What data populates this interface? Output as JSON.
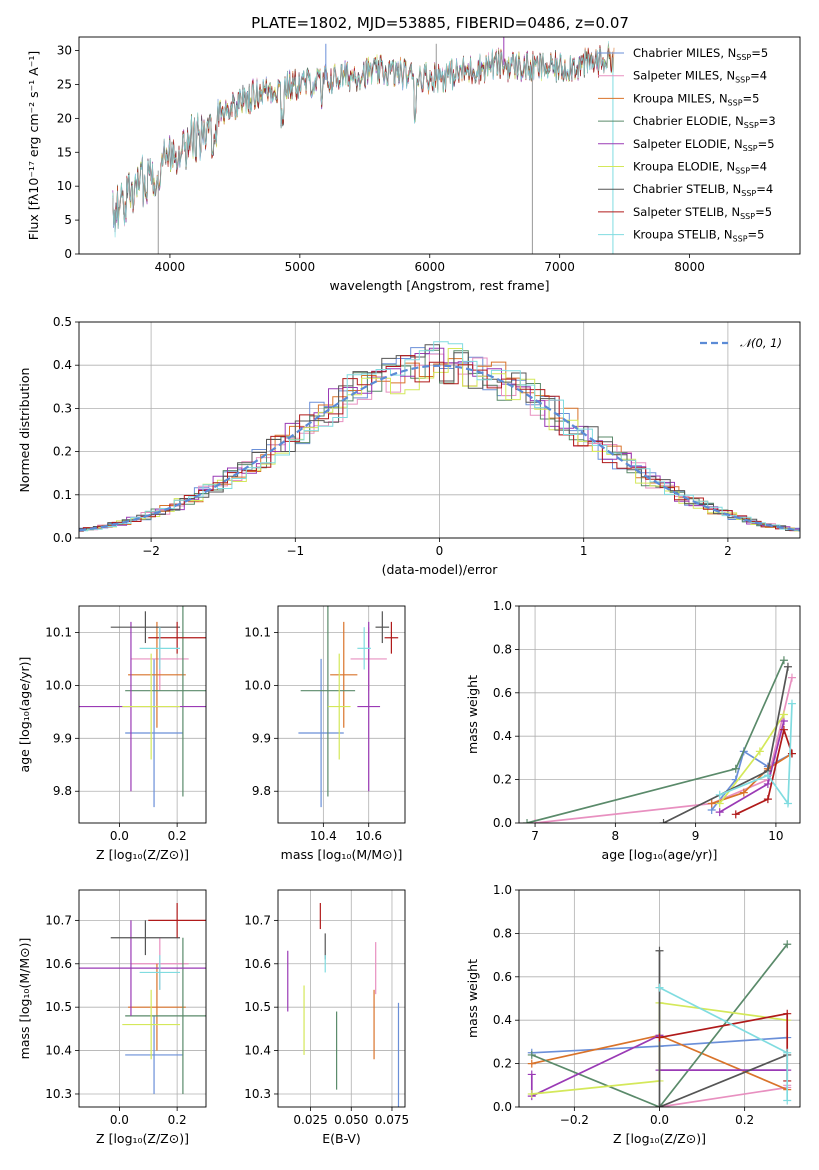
{
  "figure_title": "PLATE=1802, MJD=53885, FIBERID=0486, z=0.07",
  "colors": {
    "Chabrier MILES": "#6a8fd8",
    "Salpeter MILES": "#e890c0",
    "Kroupa MILES": "#d9732a",
    "Chabrier ELODIE": "#5a8a6a",
    "Salpeter ELODIE": "#9a3ab5",
    "Kroupa ELODIE": "#d4e85a",
    "Chabrier STELIB": "#555555",
    "Salpeter STELIB": "#b01a1a",
    "Kroupa STELIB": "#80dce0"
  },
  "chart_data": [
    {
      "id": "spectrum",
      "type": "line",
      "title": "",
      "xlabel": "wavelength [Angstrom, rest frame]",
      "ylabel": "Flux [fλ10⁻¹⁷ erg cm⁻² s⁻¹ A⁻¹]",
      "xlim": [
        3300,
        8850
      ],
      "ylim": [
        0,
        32
      ],
      "xticks": [
        4000,
        5000,
        6000,
        7000,
        8000
      ],
      "yticks": [
        0,
        5,
        10,
        15,
        20,
        25,
        30
      ],
      "grid": false,
      "legend_position": "top-right",
      "continuum": [
        [
          3560,
          6
        ],
        [
          3700,
          9
        ],
        [
          3800,
          11
        ],
        [
          3900,
          12
        ],
        [
          4000,
          15
        ],
        [
          4100,
          16
        ],
        [
          4200,
          17.5
        ],
        [
          4300,
          17
        ],
        [
          4400,
          21
        ],
        [
          4500,
          22
        ],
        [
          4700,
          24
        ],
        [
          5000,
          25
        ],
        [
          5300,
          26
        ],
        [
          5600,
          27
        ],
        [
          6000,
          26
        ],
        [
          6300,
          27
        ],
        [
          6500,
          28
        ],
        [
          6800,
          27.5
        ],
        [
          7000,
          27.5
        ],
        [
          7200,
          28
        ],
        [
          7400,
          29
        ]
      ],
      "spikes": [
        [
          5200,
          31
        ],
        [
          6050,
          31
        ],
        [
          6570,
          32
        ],
        [
          6790,
          0
        ],
        [
          7410,
          0
        ],
        [
          3910,
          0
        ]
      ],
      "series": [
        {
          "name": "Chabrier MILES, N_SSP=5",
          "legend": "Chabrier MILES, N",
          "legend_sub": "SSP",
          "legend_tail": "=5"
        },
        {
          "name": "Salpeter MILES, N_SSP=4",
          "legend": "Salpeter MILES, N",
          "legend_sub": "SSP",
          "legend_tail": "=4"
        },
        {
          "name": "Kroupa MILES, N_SSP=5",
          "legend": "Kroupa MILES, N",
          "legend_sub": "SSP",
          "legend_tail": "=5"
        },
        {
          "name": "Chabrier ELODIE, N_SSP=3",
          "legend": "Chabrier ELODIE, N",
          "legend_sub": "SSP",
          "legend_tail": "=3"
        },
        {
          "name": "Salpeter ELODIE, N_SSP=5",
          "legend": "Salpeter ELODIE, N",
          "legend_sub": "SSP",
          "legend_tail": "=5"
        },
        {
          "name": "Kroupa ELODIE, N_SSP=4",
          "legend": "Kroupa ELODIE, N",
          "legend_sub": "SSP",
          "legend_tail": "=4"
        },
        {
          "name": "Chabrier STELIB, N_SSP=4",
          "legend": "Chabrier STELIB, N",
          "legend_sub": "SSP",
          "legend_tail": "=4"
        },
        {
          "name": "Salpeter STELIB, N_SSP=5",
          "legend": "Salpeter STELIB, N",
          "legend_sub": "SSP",
          "legend_tail": "=5"
        },
        {
          "name": "Kroupa STELIB, N_SSP=5",
          "legend": "Kroupa STELIB, N",
          "legend_sub": "SSP",
          "legend_tail": "=5"
        }
      ]
    },
    {
      "id": "residuals",
      "type": "line",
      "xlabel": "(data-model)/error",
      "ylabel": "Normed distribution",
      "xlim": [
        -2.5,
        2.5
      ],
      "ylim": [
        0,
        0.5
      ],
      "xticks": [
        -2,
        -1,
        0,
        1,
        2
      ],
      "xtick_labels": [
        "−2",
        "−1",
        "0",
        "1",
        "2"
      ],
      "yticks": [
        0.0,
        0.1,
        0.2,
        0.3,
        0.4,
        0.5
      ],
      "ytick_labels": [
        "0.0",
        "0.1",
        "0.2",
        "0.3",
        "0.4",
        "0.5"
      ],
      "grid": true,
      "legend_position": "top-right",
      "reference_curve": {
        "name": "𝒩(0, 1)",
        "legend": "𝒩(0, 1)",
        "mean": 0,
        "sigma": 1,
        "color": "#5b8bd6"
      },
      "bin_width": 0.1
    },
    {
      "id": "age_vs_Z",
      "type": "scatter",
      "xlabel": "Z [log₁₀(Z/Z⊙)]",
      "ylabel": "age  [log₁₀(age/yr)]",
      "xlim": [
        -0.14,
        0.3
      ],
      "ylim": [
        9.74,
        10.15
      ],
      "xticks": [
        0.0,
        0.2
      ],
      "xtick_labels": [
        "0.0",
        "0.2"
      ],
      "yticks": [
        9.8,
        9.9,
        10.0,
        10.1
      ],
      "ytick_labels": [
        "9.8",
        "9.9",
        "10.0",
        "10.1"
      ],
      "grid": true,
      "points": [
        {
          "series": "Chabrier MILES",
          "x": 0.12,
          "xerr": 0.1,
          "y": 9.91,
          "yerr": 0.14
        },
        {
          "series": "Salpeter MILES",
          "x": 0.14,
          "xerr": 0.1,
          "y": 10.05,
          "yerr": 0.06
        },
        {
          "series": "Kroupa MILES",
          "x": 0.13,
          "xerr": 0.1,
          "y": 10.02,
          "yerr": 0.1
        },
        {
          "series": "Chabrier ELODIE",
          "x": 0.22,
          "xerr": 0.2,
          "y": 9.99,
          "yerr": 0.2
        },
        {
          "series": "Salpeter ELODIE",
          "x": 0.04,
          "xerr": 0.26,
          "y": 9.96,
          "yerr": 0.16
        },
        {
          "series": "Kroupa ELODIE",
          "x": 0.11,
          "xerr": 0.1,
          "y": 9.96,
          "yerr": 0.1
        },
        {
          "series": "Chabrier STELIB",
          "x": 0.09,
          "xerr": 0.12,
          "y": 10.11,
          "yerr": 0.03
        },
        {
          "series": "Salpeter STELIB",
          "x": 0.2,
          "xerr": 0.1,
          "y": 10.09,
          "yerr": 0.03
        },
        {
          "series": "Kroupa STELIB",
          "x": 0.14,
          "xerr": 0.07,
          "y": 10.07,
          "yerr": 0.04
        }
      ]
    },
    {
      "id": "age_vs_mass",
      "type": "scatter",
      "xlabel": "mass [log₁₀(M/M⊙)]",
      "ylabel": "",
      "xlim": [
        10.2,
        10.76
      ],
      "ylim": [
        9.74,
        10.15
      ],
      "xticks": [
        10.4,
        10.6
      ],
      "xtick_labels": [
        "10.4",
        "10.6"
      ],
      "yticks": [
        9.8,
        9.9,
        10.0,
        10.1
      ],
      "ytick_labels": [
        "9.8",
        "9.9",
        "10.0",
        "10.1"
      ],
      "grid": true,
      "points": [
        {
          "series": "Chabrier MILES",
          "x": 10.39,
          "xerr": 0.1,
          "y": 9.91,
          "yerr": 0.14
        },
        {
          "series": "Salpeter MILES",
          "x": 10.6,
          "xerr": 0.08,
          "y": 10.05,
          "yerr": 0.06
        },
        {
          "series": "Kroupa MILES",
          "x": 10.49,
          "xerr": 0.06,
          "y": 10.02,
          "yerr": 0.1
        },
        {
          "series": "Chabrier ELODIE",
          "x": 10.42,
          "xerr": 0.12,
          "y": 9.99,
          "yerr": 0.2
        },
        {
          "series": "Salpeter ELODIE",
          "x": 10.6,
          "xerr": 0.05,
          "y": 9.96,
          "yerr": 0.16
        },
        {
          "series": "Kroupa ELODIE",
          "x": 10.47,
          "xerr": 0.05,
          "y": 9.96,
          "yerr": 0.1
        },
        {
          "series": "Chabrier STELIB",
          "x": 10.66,
          "xerr": 0.03,
          "y": 10.11,
          "yerr": 0.03
        },
        {
          "series": "Salpeter STELIB",
          "x": 10.7,
          "xerr": 0.03,
          "y": 10.09,
          "yerr": 0.03
        },
        {
          "series": "Kroupa STELIB",
          "x": 10.58,
          "xerr": 0.03,
          "y": 10.07,
          "yerr": 0.04
        }
      ]
    },
    {
      "id": "weight_vs_age",
      "type": "line",
      "xlabel": "age  [log₁₀(age/yr)]",
      "ylabel": "mass weight",
      "xlim": [
        6.8,
        10.3
      ],
      "ylim": [
        0,
        1
      ],
      "xticks": [
        7,
        8,
        9,
        10
      ],
      "xtick_labels": [
        "7",
        "8",
        "9",
        "10"
      ],
      "yticks": [
        0.0,
        0.2,
        0.4,
        0.6,
        0.8,
        1.0
      ],
      "ytick_labels": [
        "0.0",
        "0.2",
        "0.4",
        "0.6",
        "0.8",
        "1.0"
      ],
      "grid": true,
      "series": [
        {
          "name": "Chabrier MILES",
          "points": [
            [
              9.2,
              0.06
            ],
            [
              9.5,
              0.2
            ],
            [
              9.6,
              0.33
            ],
            [
              9.9,
              0.26
            ],
            [
              10.2,
              0.32
            ]
          ]
        },
        {
          "name": "Salpeter MILES",
          "points": [
            [
              7.0,
              0.0
            ],
            [
              9.2,
              0.09
            ],
            [
              9.9,
              0.2
            ],
            [
              10.2,
              0.67
            ]
          ]
        },
        {
          "name": "Kroupa MILES",
          "points": [
            [
              9.2,
              0.09
            ],
            [
              9.6,
              0.14
            ],
            [
              9.9,
              0.25
            ],
            [
              10.2,
              0.32
            ]
          ]
        },
        {
          "name": "Chabrier ELODIE",
          "points": [
            [
              6.9,
              0.0
            ],
            [
              9.5,
              0.25
            ],
            [
              10.1,
              0.75
            ]
          ]
        },
        {
          "name": "Salpeter ELODIE",
          "points": [
            [
              9.3,
              0.05
            ],
            [
              9.9,
              0.18
            ],
            [
              10.1,
              0.47
            ]
          ]
        },
        {
          "name": "Kroupa ELODIE",
          "points": [
            [
              9.3,
              0.09
            ],
            [
              9.8,
              0.33
            ],
            [
              10.1,
              0.5
            ]
          ]
        },
        {
          "name": "Chabrier STELIB",
          "points": [
            [
              8.6,
              0.0
            ],
            [
              9.9,
              0.24
            ],
            [
              10.15,
              0.72
            ]
          ]
        },
        {
          "name": "Salpeter STELIB",
          "points": [
            [
              9.5,
              0.04
            ],
            [
              9.9,
              0.11
            ],
            [
              10.1,
              0.43
            ],
            [
              10.2,
              0.32
            ]
          ]
        },
        {
          "name": "Kroupa STELIB",
          "points": [
            [
              9.3,
              0.13
            ],
            [
              9.9,
              0.22
            ],
            [
              10.15,
              0.09
            ],
            [
              10.2,
              0.55
            ]
          ]
        }
      ]
    },
    {
      "id": "mass_vs_Z",
      "type": "scatter",
      "xlabel": "Z [log₁₀(Z/Z⊙)]",
      "ylabel": "mass [log₁₀(M/M⊙)]",
      "xlim": [
        -0.14,
        0.3
      ],
      "ylim": [
        10.27,
        10.77
      ],
      "xticks": [
        0.0,
        0.2
      ],
      "xtick_labels": [
        "0.0",
        "0.2"
      ],
      "yticks": [
        10.3,
        10.4,
        10.5,
        10.6,
        10.7
      ],
      "ytick_labels": [
        "10.3",
        "10.4",
        "10.5",
        "10.6",
        "10.7"
      ],
      "grid": true,
      "points": [
        {
          "series": "Chabrier MILES",
          "x": 0.12,
          "xerr": 0.1,
          "y": 10.39,
          "yerr": 0.09
        },
        {
          "series": "Salpeter MILES",
          "x": 0.14,
          "xerr": 0.1,
          "y": 10.6,
          "yerr": 0.06
        },
        {
          "series": "Kroupa MILES",
          "x": 0.13,
          "xerr": 0.1,
          "y": 10.5,
          "yerr": 0.1
        },
        {
          "series": "Chabrier ELODIE",
          "x": 0.22,
          "xerr": 0.2,
          "y": 10.48,
          "yerr": 0.18
        },
        {
          "series": "Salpeter ELODIE",
          "x": 0.04,
          "xerr": 0.26,
          "y": 10.59,
          "yerr": 0.11
        },
        {
          "series": "Kroupa ELODIE",
          "x": 0.11,
          "xerr": 0.1,
          "y": 10.46,
          "yerr": 0.08
        },
        {
          "series": "Chabrier STELIB",
          "x": 0.09,
          "xerr": 0.12,
          "y": 10.66,
          "yerr": 0.04
        },
        {
          "series": "Salpeter STELIB",
          "x": 0.2,
          "xerr": 0.1,
          "y": 10.7,
          "yerr": 0.04
        },
        {
          "series": "Kroupa STELIB",
          "x": 0.14,
          "xerr": 0.07,
          "y": 10.58,
          "yerr": 0.04
        }
      ]
    },
    {
      "id": "mass_vs_ebv",
      "type": "scatter",
      "xlabel": "E(B-V)",
      "ylabel": "",
      "xlim": [
        0.005,
        0.083
      ],
      "ylim": [
        10.27,
        10.77
      ],
      "xticks": [
        0.025,
        0.05,
        0.075
      ],
      "xtick_labels": [
        "0.025",
        "0.050",
        "0.075"
      ],
      "yticks": [
        10.3,
        10.4,
        10.5,
        10.6,
        10.7
      ],
      "ytick_labels": [
        "10.3",
        "10.4",
        "10.5",
        "10.6",
        "10.7"
      ],
      "grid": true,
      "points": [
        {
          "series": "Chabrier MILES",
          "x": 0.079,
          "xerr": 0,
          "y": 10.39,
          "yerr": 0.12
        },
        {
          "series": "Salpeter MILES",
          "x": 0.065,
          "xerr": 0,
          "y": 10.59,
          "yerr": 0.06
        },
        {
          "series": "Kroupa MILES",
          "x": 0.064,
          "xerr": 0,
          "y": 10.46,
          "yerr": 0.08
        },
        {
          "series": "Chabrier ELODIE",
          "x": 0.041,
          "xerr": 0,
          "y": 10.4,
          "yerr": 0.09
        },
        {
          "series": "Salpeter ELODIE",
          "x": 0.011,
          "xerr": 0,
          "y": 10.56,
          "yerr": 0.07
        },
        {
          "series": "Kroupa ELODIE",
          "x": 0.021,
          "xerr": 0,
          "y": 10.47,
          "yerr": 0.08
        },
        {
          "series": "Chabrier STELIB",
          "x": 0.034,
          "xerr": 0,
          "y": 10.64,
          "yerr": 0.03
        },
        {
          "series": "Salpeter STELIB",
          "x": 0.031,
          "xerr": 0,
          "y": 10.71,
          "yerr": 0.03
        },
        {
          "series": "Kroupa STELIB",
          "x": 0.034,
          "xerr": 0,
          "y": 10.6,
          "yerr": 0.02
        }
      ]
    },
    {
      "id": "weight_vs_Z",
      "type": "line",
      "xlabel": "Z [log₁₀(Z/Z⊙)]",
      "ylabel": "mass weight",
      "xlim": [
        -0.33,
        0.33
      ],
      "ylim": [
        0,
        1
      ],
      "xticks": [
        -0.2,
        0.0,
        0.2
      ],
      "xtick_labels": [
        "−0.2",
        "0.0",
        "0.2"
      ],
      "yticks": [
        0.0,
        0.2,
        0.4,
        0.6,
        0.8,
        1.0
      ],
      "ytick_labels": [
        "0.0",
        "0.2",
        "0.4",
        "0.6",
        "0.8",
        "1.0"
      ],
      "grid": true,
      "series": [
        {
          "name": "Chabrier MILES",
          "points": [
            [
              -0.3,
              0.25
            ],
            [
              0.0,
              0.28
            ],
            [
              0.3,
              0.32
            ]
          ]
        },
        {
          "name": "Salpeter MILES",
          "points": [
            [
              0.0,
              0.0
            ],
            [
              0.3,
              0.09
            ],
            [
              0.3,
              0.1
            ]
          ]
        },
        {
          "name": "Kroupa MILES",
          "points": [
            [
              -0.3,
              0.2
            ],
            [
              0.0,
              0.33
            ],
            [
              0.3,
              0.08
            ]
          ]
        },
        {
          "name": "Chabrier ELODIE",
          "points": [
            [
              -0.3,
              0.24
            ],
            [
              0.0,
              0.0
            ],
            [
              0.3,
              0.75
            ]
          ]
        },
        {
          "name": "Salpeter ELODIE",
          "points": [
            [
              -0.3,
              0.15
            ],
            [
              -0.3,
              0.05
            ],
            [
              0.0,
              0.33
            ],
            [
              0.0,
              0.17
            ],
            [
              0.3,
              0.17
            ]
          ]
        },
        {
          "name": "Kroupa ELODIE",
          "points": [
            [
              -0.3,
              0.06
            ],
            [
              0.0,
              0.12
            ],
            [
              0.0,
              0.48
            ],
            [
              0.3,
              0.4
            ]
          ]
        },
        {
          "name": "Chabrier STELIB",
          "points": [
            [
              0.0,
              0.72
            ],
            [
              0.0,
              0.0
            ],
            [
              0.3,
              0.24
            ]
          ]
        },
        {
          "name": "Salpeter STELIB",
          "points": [
            [
              0.0,
              0.32
            ],
            [
              0.3,
              0.43
            ],
            [
              0.3,
              0.12
            ]
          ]
        },
        {
          "name": "Kroupa STELIB",
          "points": [
            [
              0.0,
              0.55
            ],
            [
              0.3,
              0.25
            ],
            [
              0.3,
              0.03
            ]
          ]
        }
      ]
    }
  ]
}
